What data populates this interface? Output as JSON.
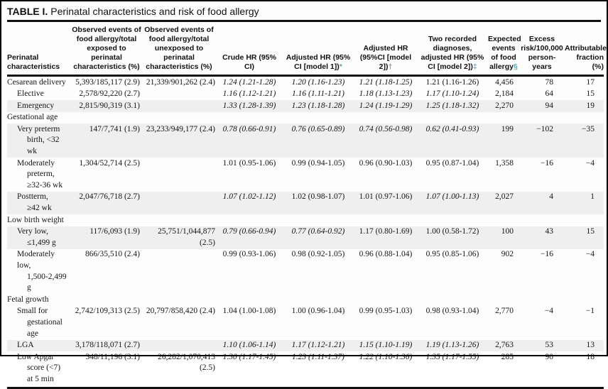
{
  "title": {
    "label": "TABLE I.",
    "text": "Perinatal characteristics and risk of food allergy"
  },
  "colors": {
    "footnote_marker_teal": "#45b0c8",
    "row_shade_gray": "#efefef",
    "rule_black": "#101010"
  },
  "table": {
    "columns": [
      {
        "id": "characteristic",
        "header": "Perinatal characteristics",
        "marker": ""
      },
      {
        "id": "observed_exposed",
        "header": "Observed events of food allergy/total exposed to perinatal characteristics (%)",
        "marker": ""
      },
      {
        "id": "observed_unexposed",
        "header": "Observed events of food allergy/total unexposed to perinatal characteristics (%)",
        "marker": ""
      },
      {
        "id": "crude_hr",
        "header": "Crude HR (95% CI)",
        "marker": ""
      },
      {
        "id": "adjusted_hr_model1",
        "header": "Adjusted HR (95% CI [model 1])",
        "marker": "*"
      },
      {
        "id": "adjusted_hr_model2",
        "header": "Adjusted HR (95%CI [model 2])",
        "marker": "†"
      },
      {
        "id": "two_recorded",
        "header": "Two recorded diagnoses, adjusted HR (95% CI [model 2])",
        "marker": "‡"
      },
      {
        "id": "expected_events",
        "header": "Expected events of food allergy",
        "marker": "§"
      },
      {
        "id": "excess_risk",
        "header": "Excess risk/100,000 person-years",
        "marker": ""
      },
      {
        "id": "attributable_fraction",
        "header": "Attributable fraction (%)",
        "marker": ""
      }
    ],
    "rows": [
      {
        "type": "data",
        "indent": false,
        "shaded": false,
        "label_lines": [
          "Cesarean delivery"
        ],
        "cells": {
          "observed_exposed": "5,393/185,117 (2.9)",
          "observed_unexposed": "21,339/901,262 (2.4)",
          "crude_hr": {
            "text": "1.24 (1.21-1.28)",
            "italic": true
          },
          "adjusted_hr_model1": {
            "text": "1.20 (1.16-1.23)",
            "italic": true
          },
          "adjusted_hr_model2": {
            "text": "1.21 (1.18-1.25)",
            "italic": true
          },
          "two_recorded": {
            "text": "1.21 (1.16-1.26)",
            "italic": false
          },
          "expected_events": "4,456",
          "excess_risk": "78",
          "attributable_fraction": "17"
        }
      },
      {
        "type": "data",
        "indent": true,
        "shaded": false,
        "label_lines": [
          "Elective"
        ],
        "cells": {
          "observed_exposed": "2,578/92,220 (2.7)",
          "observed_unexposed": "",
          "crude_hr": {
            "text": "1.16 (1.12-1.21)",
            "italic": true
          },
          "adjusted_hr_model1": {
            "text": "1.16 (1.11-1.21)",
            "italic": true
          },
          "adjusted_hr_model2": {
            "text": "1.18 (1.13-1.23)",
            "italic": true
          },
          "two_recorded": {
            "text": "1.17 (1.10-1.24)",
            "italic": true
          },
          "expected_events": "2,184",
          "excess_risk": "64",
          "attributable_fraction": "15"
        }
      },
      {
        "type": "data",
        "indent": true,
        "shaded": true,
        "label_lines": [
          "Emergency"
        ],
        "cells": {
          "observed_exposed": "2,815/90,319 (3.1)",
          "observed_unexposed": "",
          "crude_hr": {
            "text": "1.33 (1.28-1.39)",
            "italic": true
          },
          "adjusted_hr_model1": {
            "text": "1.23 (1.18-1.28)",
            "italic": true
          },
          "adjusted_hr_model2": {
            "text": "1.24 (1.19-1.29)",
            "italic": true
          },
          "two_recorded": {
            "text": "1.25 (1.18-1.32)",
            "italic": true
          },
          "expected_events": "2,270",
          "excess_risk": "94",
          "attributable_fraction": "19"
        }
      },
      {
        "type": "section",
        "indent": false,
        "shaded": false,
        "label_lines": [
          "Gestational age"
        ],
        "cells": {}
      },
      {
        "type": "data",
        "indent": true,
        "shaded": true,
        "label_lines": [
          "Very preterm",
          "birth, <32 wk"
        ],
        "cells": {
          "observed_exposed": "147/7,741 (1.9)",
          "observed_unexposed": "23,233/949,177 (2.4)",
          "crude_hr": {
            "text": "0.78 (0.66-0.91)",
            "italic": true
          },
          "adjusted_hr_model1": {
            "text": "0.76 (0.65-0.89)",
            "italic": true
          },
          "adjusted_hr_model2": {
            "text": "0.74 (0.56-0.98)",
            "italic": true
          },
          "two_recorded": {
            "text": "0.62 (0.41-0.93)",
            "italic": true
          },
          "expected_events": "199",
          "excess_risk": "−102",
          "attributable_fraction": "−35"
        }
      },
      {
        "type": "data",
        "indent": true,
        "shaded": false,
        "label_lines": [
          "Moderately",
          "preterm,",
          "≥32-36 wk"
        ],
        "cells": {
          "observed_exposed": "1,304/52,714 (2.5)",
          "observed_unexposed": "",
          "crude_hr": {
            "text": "1.01 (0.95-1.06)",
            "italic": false
          },
          "adjusted_hr_model1": {
            "text": "0.99 (0.94-1.05)",
            "italic": false
          },
          "adjusted_hr_model2": {
            "text": "0.96 (0.90-1.03)",
            "italic": false
          },
          "two_recorded": {
            "text": "0.95 (0.87-1.04)",
            "italic": false
          },
          "expected_events": "1,358",
          "excess_risk": "−16",
          "attributable_fraction": "−4"
        }
      },
      {
        "type": "data",
        "indent": true,
        "shaded": true,
        "label_lines": [
          "Postterm,",
          "≥42 wk"
        ],
        "cells": {
          "observed_exposed": "2,047/76,718 (2.7)",
          "observed_unexposed": "",
          "crude_hr": {
            "text": "1.07 (1.02-1.12)",
            "italic": true
          },
          "adjusted_hr_model1": {
            "text": "1.02 (0.98-1.07)",
            "italic": false
          },
          "adjusted_hr_model2": {
            "text": "1.01 (0.97-1.06)",
            "italic": false
          },
          "two_recorded": {
            "text": "1.07 (1.00-1.13)",
            "italic": true
          },
          "expected_events": "2,027",
          "excess_risk": "4",
          "attributable_fraction": "1"
        }
      },
      {
        "type": "section",
        "indent": false,
        "shaded": false,
        "label_lines": [
          "Low birth weight"
        ],
        "cells": {}
      },
      {
        "type": "data",
        "indent": true,
        "shaded": true,
        "label_lines": [
          "Very low,",
          "≤1,499 g"
        ],
        "cells": {
          "observed_exposed": "117/6,093 (1.9)",
          "observed_unexposed": "25,751/1,044,877 (2.5)",
          "crude_hr": {
            "text": "0.79 (0.66-0.94)",
            "italic": true
          },
          "adjusted_hr_model1": {
            "text": "0.77 (0.64-0.92)",
            "italic": true
          },
          "adjusted_hr_model2": {
            "text": "1.17 (0.80-1.69)",
            "italic": false
          },
          "two_recorded": {
            "text": "1.00 (0.58-1.72)",
            "italic": false
          },
          "expected_events": "100",
          "excess_risk": "43",
          "attributable_fraction": "15"
        }
      },
      {
        "type": "data",
        "indent": true,
        "shaded": false,
        "label_lines": [
          "Moderately low,",
          "1,500-2,499 g"
        ],
        "cells": {
          "observed_exposed": "866/35,510 (2.4)",
          "observed_unexposed": "",
          "crude_hr": {
            "text": "0.99 (0.93-1.06)",
            "italic": false
          },
          "adjusted_hr_model1": {
            "text": "0.98 (0.92-1.05)",
            "italic": false
          },
          "adjusted_hr_model2": {
            "text": "0.96 (0.88-1.04)",
            "italic": false
          },
          "two_recorded": {
            "text": "0.95 (0.85-1.06)",
            "italic": false
          },
          "expected_events": "902",
          "excess_risk": "−16",
          "attributable_fraction": "−4"
        }
      },
      {
        "type": "section",
        "indent": false,
        "shaded": false,
        "label_lines": [
          "Fetal growth"
        ],
        "cells": {}
      },
      {
        "type": "data",
        "indent": true,
        "shaded": false,
        "label_lines": [
          "Small for",
          "gestational",
          "age"
        ],
        "cells": {
          "observed_exposed": "2,742/109,313 (2.5)",
          "observed_unexposed": "20,797/858,420 (2.4)",
          "crude_hr": {
            "text": "1.04 (1.00-1.08)",
            "italic": false
          },
          "adjusted_hr_model1": {
            "text": "1.00 (0.96-1.04)",
            "italic": false
          },
          "adjusted_hr_model2": {
            "text": "0.99 (0.95-1.03)",
            "italic": false
          },
          "two_recorded": {
            "text": "0.98 (0.93-1.04)",
            "italic": false
          },
          "expected_events": "2,770",
          "excess_risk": "−4",
          "attributable_fraction": "−1"
        }
      },
      {
        "type": "data",
        "indent": true,
        "shaded": true,
        "label_lines": [
          "LGA"
        ],
        "cells": {
          "observed_exposed": "3,178/118,071 (2.7)",
          "observed_unexposed": "",
          "crude_hr": {
            "text": "1.10 (1.06-1.14)",
            "italic": true
          },
          "adjusted_hr_model1": {
            "text": "1.17 (1.12-1.21)",
            "italic": true
          },
          "adjusted_hr_model2": {
            "text": "1.15 (1.10-1.19)",
            "italic": true
          },
          "two_recorded": {
            "text": "1.19 (1.13-1.26)",
            "italic": true
          },
          "expected_events": "2,763",
          "excess_risk": "53",
          "attributable_fraction": "13"
        }
      },
      {
        "type": "data",
        "indent": true,
        "shaded": false,
        "label_lines": [
          "Low Apgar",
          "score (<7)",
          "at 5 min"
        ],
        "cells": {
          "observed_exposed": "348/11,196 (3.1)",
          "observed_unexposed": "26,282/1,070,413 (2.5)",
          "crude_hr": {
            "text": "1.30 (1.17-1.45)",
            "italic": true
          },
          "adjusted_hr_model1": {
            "text": "1.23 (1.11-1.37)",
            "italic": true
          },
          "adjusted_hr_model2": {
            "text": "1.22 (1.10-1.36)",
            "italic": true
          },
          "two_recorded": {
            "text": "1.35 (1.17-1.55)",
            "italic": true
          },
          "expected_events": "285",
          "excess_risk": "90",
          "attributable_fraction": "18"
        }
      }
    ]
  }
}
